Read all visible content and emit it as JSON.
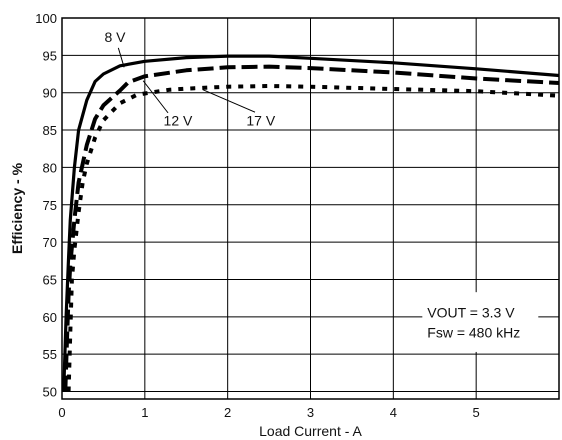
{
  "chart_data": {
    "type": "line",
    "xlabel": "Load Current - A",
    "ylabel": "Efficiency - %",
    "xlim": [
      0,
      6
    ],
    "ylim": [
      49,
      100
    ],
    "xticks": [
      0,
      1,
      2,
      3,
      4,
      5
    ],
    "yticks": [
      50,
      55,
      60,
      65,
      70,
      75,
      80,
      85,
      90,
      95,
      100
    ],
    "grid": true,
    "series": [
      {
        "name": "8 V",
        "style": "solid",
        "x": [
          0.02,
          0.05,
          0.08,
          0.1,
          0.15,
          0.2,
          0.3,
          0.4,
          0.5,
          0.7,
          1.0,
          1.5,
          2.0,
          2.5,
          3.0,
          4.0,
          5.0,
          6.0
        ],
        "y": [
          50,
          60,
          68,
          73,
          80,
          85,
          89,
          91.5,
          92.5,
          93.6,
          94.2,
          94.7,
          94.9,
          94.9,
          94.6,
          94.0,
          93.2,
          92.3
        ]
      },
      {
        "name": "12 V",
        "style": "dashed",
        "x": [
          0.04,
          0.06,
          0.08,
          0.1,
          0.15,
          0.2,
          0.3,
          0.4,
          0.5,
          0.6,
          0.7,
          0.8,
          1.0,
          1.5,
          2.0,
          2.5,
          3.0,
          4.0,
          5.0,
          6.0
        ],
        "y": [
          50,
          57,
          63,
          67,
          73,
          78,
          83,
          86.5,
          88.3,
          89.3,
          90.3,
          91.4,
          92.2,
          93.0,
          93.4,
          93.5,
          93.3,
          92.7,
          91.9,
          91.3
        ]
      },
      {
        "name": "17 V",
        "style": "dotted",
        "x": [
          0.08,
          0.1,
          0.12,
          0.15,
          0.2,
          0.25,
          0.3,
          0.4,
          0.5,
          0.7,
          0.9,
          1.0,
          1.3,
          1.6,
          2.0,
          2.5,
          3.0,
          4.0,
          5.0,
          6.0
        ],
        "y": [
          50,
          58,
          65,
          69,
          74,
          78,
          80.5,
          84,
          86.3,
          88.6,
          89.7,
          89.9,
          90.4,
          90.6,
          90.8,
          90.9,
          90.8,
          90.5,
          90.2,
          89.6
        ]
      }
    ],
    "annotations": {
      "text_line_1": "VOUT = 3.3 V",
      "text_line_2": "Fsw = 480 kHz"
    }
  }
}
